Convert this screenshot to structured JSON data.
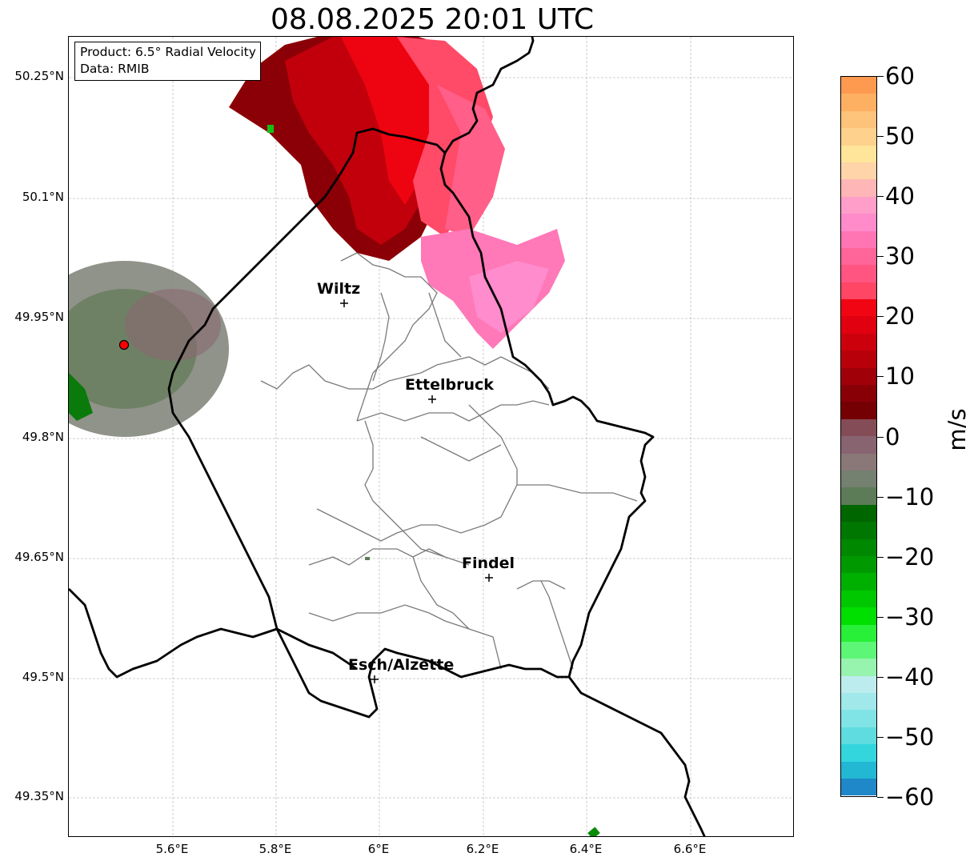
{
  "title": "08.08.2025 20:01 UTC",
  "infobox": {
    "product": "Product: 6.5° Radial Velocity",
    "data": "Data: RMIB"
  },
  "axes": {
    "lat_ticks": [
      "50.25°N",
      "50.1°N",
      "49.95°N",
      "49.8°N",
      "49.65°N",
      "49.5°N",
      "49.35°N"
    ],
    "lon_ticks": [
      "5.6°E",
      "5.8°E",
      "6°E",
      "6.2°E",
      "6.4°E",
      "6.6°E"
    ],
    "grid": true
  },
  "cities": [
    {
      "name": "Wiltz",
      "lon": 5.93,
      "lat": 49.967
    },
    {
      "name": "Ettelbruck",
      "lon": 6.1,
      "lat": 49.847
    },
    {
      "name": "Findel",
      "lon": 6.21,
      "lat": 49.627
    },
    {
      "name": "Esch/Alzette",
      "lon": 5.99,
      "lat": 49.497
    }
  ],
  "radar_site": {
    "lon": 5.505,
    "lat": 49.914
  },
  "colorbar": {
    "unit": "m/s",
    "min": -60,
    "max": 60,
    "tick_labels": [
      "60",
      "50",
      "40",
      "30",
      "20",
      "10",
      "0",
      "−10",
      "−20",
      "−30",
      "−40",
      "−50",
      "−60"
    ],
    "colors": [
      "#fe9a50",
      "#feb062",
      "#fec37a",
      "#fed28c",
      "#ffe59a",
      "#ffd4a8",
      "#ffb6b6",
      "#ff9ec9",
      "#ff8bcb",
      "#ff75b4",
      "#ff6599",
      "#ff5580",
      "#ff4665",
      "#f20512",
      "#e00010",
      "#cc000d",
      "#b8000a",
      "#a00008",
      "#880006",
      "#740004",
      "#844c56",
      "#886370",
      "#8a7878",
      "#748070",
      "#5c7c58",
      "#006600",
      "#007700",
      "#008800",
      "#009a00",
      "#00b000",
      "#00c800",
      "#00e000",
      "#28f038",
      "#5ef676",
      "#96f4ae",
      "#bdecee",
      "#a0e8ea",
      "#80e4e6",
      "#5edce0",
      "#34d6de",
      "#22b8d4",
      "#1e88c8"
    ]
  }
}
